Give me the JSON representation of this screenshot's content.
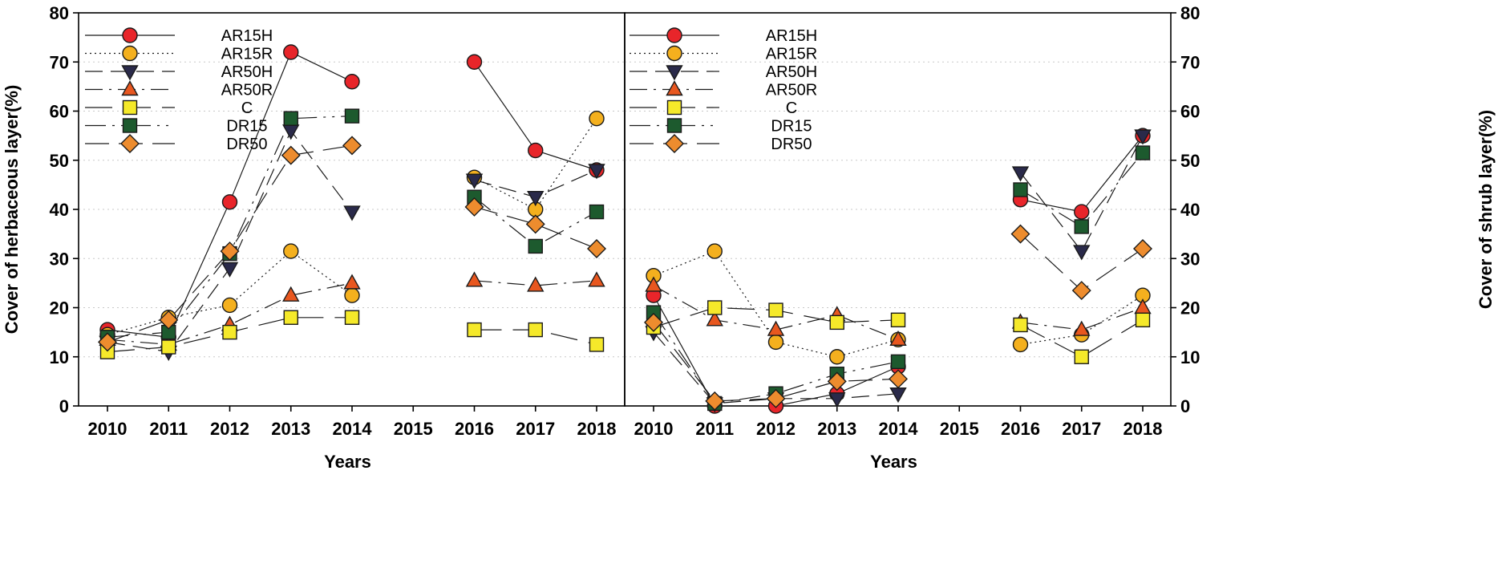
{
  "chart_data": [
    {
      "type": "line",
      "panel": "left",
      "xlabel": "Years",
      "ylabel": "Cover of herbaceous layer(%)",
      "x_ticks": [
        "2010",
        "2011",
        "2012",
        "2013",
        "2014",
        "2015",
        "2016",
        "2017",
        "2018"
      ],
      "ylim": [
        0,
        80
      ],
      "y_ticks": [
        "0",
        "10",
        "20",
        "30",
        "40",
        "50",
        "60",
        "70",
        "80"
      ],
      "y_axis_side": "left",
      "grid": "horizontal dotted",
      "legend_position": "top-left",
      "series": [
        {
          "name": "AR15H",
          "marker": "circle",
          "color": "#e8252a",
          "dash": "none",
          "values": [
            15.5,
            14.0,
            41.5,
            72.0,
            66.0,
            null,
            70.0,
            52.0,
            48.0
          ]
        },
        {
          "name": "AR15R",
          "marker": "circle",
          "color": "#f4b01e",
          "dash": "2,4",
          "values": [
            14.5,
            18.0,
            20.5,
            31.5,
            22.5,
            null,
            46.5,
            40.0,
            58.5
          ]
        },
        {
          "name": "AR50H",
          "marker": "triangle-down",
          "color": "#2a2a4a",
          "dash": "22,10",
          "values": [
            13.0,
            11.0,
            28.0,
            56.0,
            39.5,
            null,
            46.0,
            42.5,
            48.0
          ]
        },
        {
          "name": "AR50R",
          "marker": "triangle-up",
          "color": "#e8571f",
          "dash": "22,8,3,8",
          "values": [
            13.5,
            12.5,
            16.5,
            22.5,
            25.0,
            null,
            25.5,
            24.5,
            25.5
          ]
        },
        {
          "name": "C",
          "marker": "square",
          "color": "#f5e92a",
          "dash": "34,14",
          "values": [
            11.0,
            12.0,
            15.0,
            18.0,
            18.0,
            null,
            15.5,
            15.5,
            12.5
          ]
        },
        {
          "name": "DR15",
          "marker": "square",
          "color": "#1d5a2e",
          "dash": "26,8,3,8,3,8",
          "values": [
            14.0,
            15.0,
            31.0,
            58.5,
            59.0,
            null,
            42.5,
            32.5,
            39.5
          ]
        },
        {
          "name": "DR50",
          "marker": "diamond",
          "color": "#ed8c2e",
          "dash": "30,12",
          "values": [
            13.0,
            17.5,
            31.5,
            51.0,
            53.0,
            null,
            40.5,
            37.0,
            32.0
          ]
        }
      ]
    },
    {
      "type": "line",
      "panel": "right",
      "xlabel": "Years",
      "ylabel": "Cover of shrub layer(%)",
      "x_ticks": [
        "2010",
        "2011",
        "2012",
        "2013",
        "2014",
        "2015",
        "2016",
        "2017",
        "2018"
      ],
      "ylim": [
        0,
        80
      ],
      "y_ticks": [
        "0",
        "10",
        "20",
        "30",
        "40",
        "50",
        "60",
        "70",
        "80"
      ],
      "y_axis_side": "right",
      "grid": "horizontal dotted",
      "legend_position": "top-left",
      "series": [
        {
          "name": "AR15H",
          "marker": "circle",
          "color": "#e8252a",
          "dash": "none",
          "values": [
            22.5,
            0.0,
            0.0,
            2.5,
            8.0,
            null,
            42.0,
            39.5,
            55.0
          ]
        },
        {
          "name": "AR15R",
          "marker": "circle",
          "color": "#f4b01e",
          "dash": "2,4",
          "values": [
            26.5,
            31.5,
            13.0,
            10.0,
            13.5,
            null,
            12.5,
            14.5,
            22.5
          ]
        },
        {
          "name": "AR50H",
          "marker": "triangle-down",
          "color": "#2a2a4a",
          "dash": "22,10",
          "values": [
            15.0,
            0.5,
            1.5,
            1.5,
            2.5,
            null,
            47.5,
            31.5,
            55.0
          ]
        },
        {
          "name": "AR50R",
          "marker": "triangle-up",
          "color": "#e8571f",
          "dash": "22,8,3,8",
          "values": [
            24.5,
            17.5,
            15.5,
            18.5,
            13.5,
            null,
            17.0,
            15.5,
            20.0
          ]
        },
        {
          "name": "C",
          "marker": "square",
          "color": "#f5e92a",
          "dash": "34,14",
          "values": [
            16.0,
            20.0,
            19.5,
            17.0,
            17.5,
            null,
            16.5,
            10.0,
            17.5
          ]
        },
        {
          "name": "DR15",
          "marker": "square",
          "color": "#1d5a2e",
          "dash": "26,8,3,8,3,8",
          "values": [
            19.0,
            0.5,
            2.5,
            6.5,
            9.0,
            null,
            44.0,
            36.5,
            51.5
          ]
        },
        {
          "name": "DR50",
          "marker": "diamond",
          "color": "#ed8c2e",
          "dash": "30,12",
          "values": [
            17.0,
            1.0,
            1.5,
            5.0,
            5.5,
            null,
            35.0,
            23.5,
            32.0
          ]
        }
      ]
    }
  ]
}
